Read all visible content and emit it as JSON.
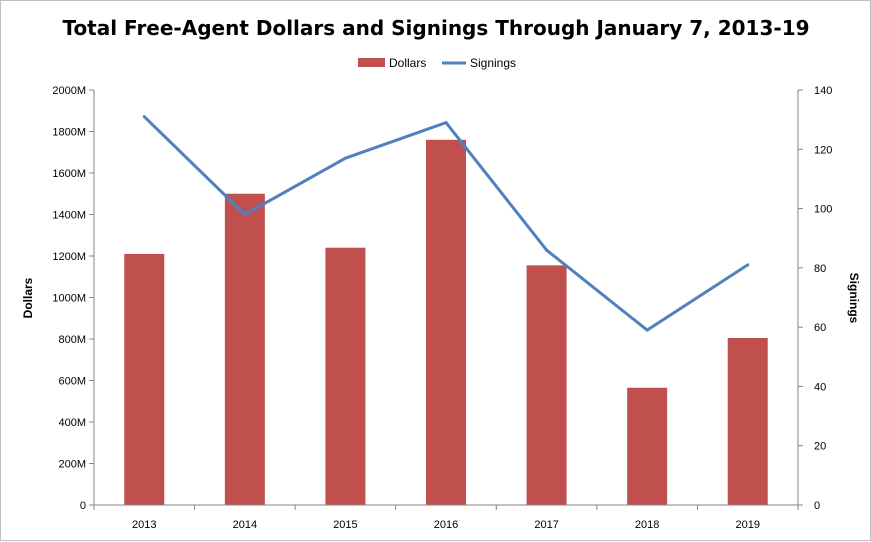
{
  "colors": {
    "bars": "#c0504d",
    "line": "#4f81bd",
    "axis": "#868686"
  },
  "chart_data": {
    "type": "bar",
    "title": "Total Free-Agent Dollars and Signings Through January 7, 2013-19",
    "categories": [
      "2013",
      "2014",
      "2015",
      "2016",
      "2017",
      "2018",
      "2019"
    ],
    "series": [
      {
        "name": "Dollars",
        "type": "bar",
        "axis": "left",
        "values": [
          1210,
          1500,
          1240,
          1760,
          1155,
          565,
          805
        ]
      },
      {
        "name": "Signings",
        "type": "line",
        "axis": "right",
        "values": [
          131,
          98,
          117,
          129,
          86,
          59,
          81
        ]
      }
    ],
    "ylabel": "Dollars",
    "y2label": "Signings",
    "ylim": [
      0,
      2000
    ],
    "y2lim": [
      0,
      140
    ],
    "yticks": [
      "0",
      "200M",
      "400M",
      "600M",
      "800M",
      "1000M",
      "1200M",
      "1400M",
      "1600M",
      "1800M",
      "2000M"
    ],
    "y2ticks": [
      "0",
      "20",
      "40",
      "60",
      "80",
      "100",
      "120",
      "140"
    ],
    "legend": "top-center",
    "grid": false
  }
}
